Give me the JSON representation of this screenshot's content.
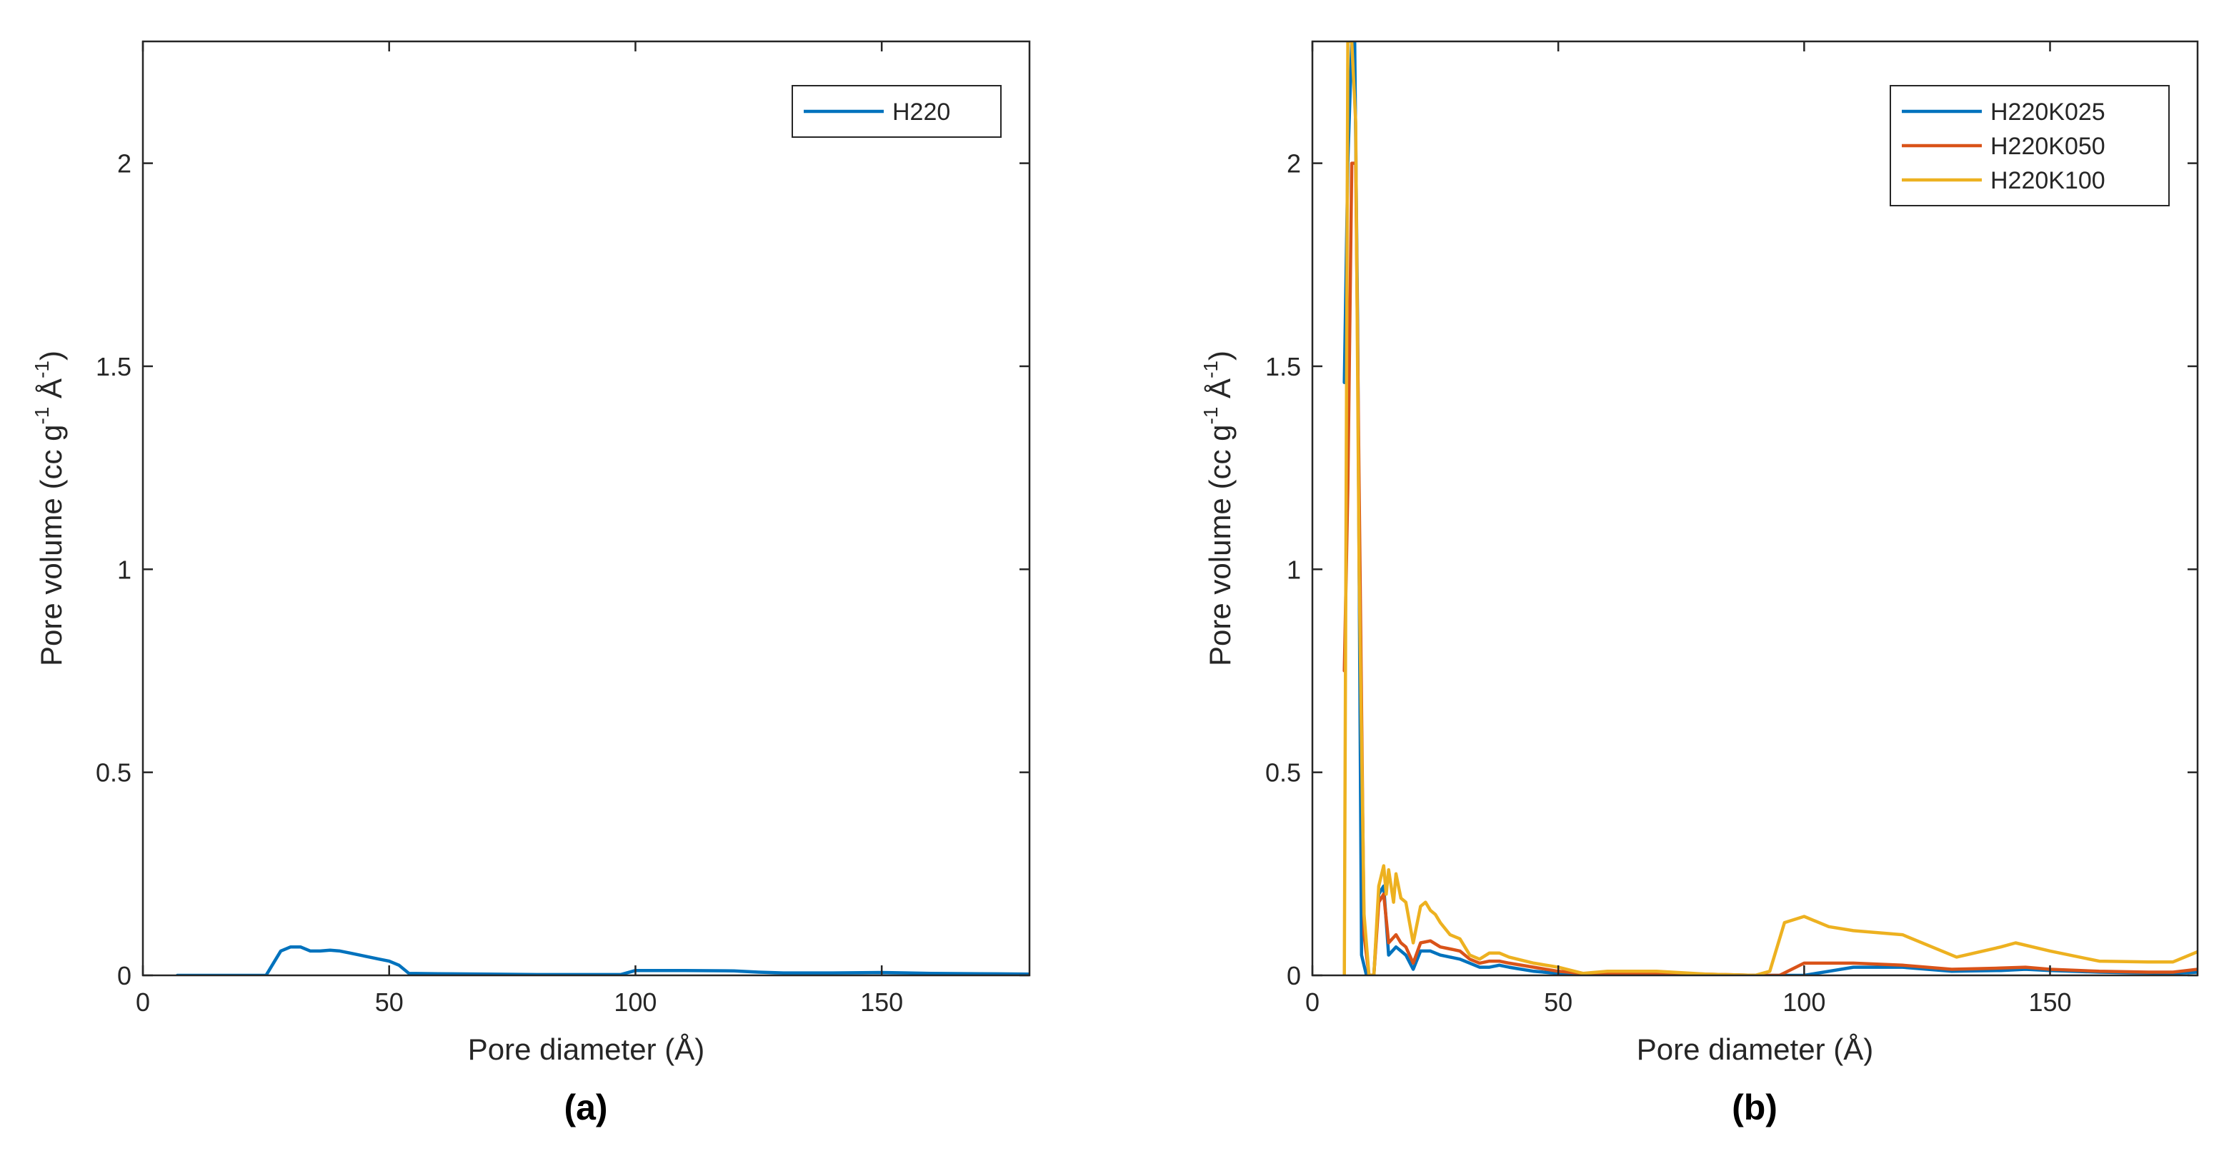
{
  "chart_data": [
    {
      "type": "line",
      "panel_label": "(a)",
      "xlabel": "Pore diameter (Å)",
      "ylabel": "Pore volume (cc g⁻¹ Å⁻¹)",
      "ylabel_parts": {
        "base": "Pore volume (cc g",
        "sup1": "-1",
        "mid": " Å",
        "sup2": "-1",
        "end": ")"
      },
      "xlim": [
        0,
        180
      ],
      "ylim": [
        0,
        2.3
      ],
      "xticks": [
        0,
        50,
        100,
        150
      ],
      "xtick_labels": [
        "0",
        "50",
        "100",
        "150"
      ],
      "yticks": [
        0,
        0.5,
        1,
        1.5,
        2
      ],
      "ytick_labels": [
        "0",
        "0.5",
        "1",
        "1.5",
        "2"
      ],
      "legend_position": "top-right",
      "series": [
        {
          "name": "H220",
          "color": "#0072BD",
          "x": [
            7,
            15,
            25,
            28,
            30,
            32,
            34,
            36,
            38,
            40,
            42,
            44,
            46,
            48,
            50,
            52,
            54,
            60,
            70,
            80,
            90,
            97,
            100,
            110,
            120,
            125,
            130,
            140,
            150,
            160,
            170,
            180
          ],
          "y": [
            0,
            0,
            0,
            0.06,
            0.07,
            0.07,
            0.06,
            0.06,
            0.062,
            0.06,
            0.055,
            0.05,
            0.045,
            0.04,
            0.035,
            0.025,
            0.005,
            0.004,
            0.003,
            0.002,
            0.002,
            0.002,
            0.012,
            0.012,
            0.011,
            0.008,
            0.006,
            0.006,
            0.007,
            0.005,
            0.004,
            0.003
          ]
        }
      ]
    },
    {
      "type": "line",
      "panel_label": "(b)",
      "xlabel": "Pore diameter (Å)",
      "ylabel": "Pore volume (cc g⁻¹ Å⁻¹)",
      "ylabel_parts": {
        "base": "Pore volume (cc g",
        "sup1": "-1",
        "mid": " Å",
        "sup2": "-1",
        "end": ")"
      },
      "xlim": [
        0,
        180
      ],
      "ylim": [
        0,
        2.3
      ],
      "xticks": [
        0,
        50,
        100,
        150
      ],
      "xtick_labels": [
        "0",
        "50",
        "100",
        "150"
      ],
      "yticks": [
        0,
        0.5,
        1,
        1.5,
        2
      ],
      "ytick_labels": [
        "0",
        "0.5",
        "1",
        "1.5",
        "2"
      ],
      "legend_position": "top-right",
      "series": [
        {
          "name": "H220K025",
          "color": "#0072BD",
          "x": [
            6.5,
            7.2,
            8,
            8.6,
            9.2,
            10,
            11,
            12.5,
            13.5,
            14.5,
            15.5,
            17,
            18,
            19,
            20.5,
            22,
            24,
            26,
            28,
            30,
            32,
            34,
            36,
            38,
            40,
            45,
            50,
            55,
            60,
            70,
            80,
            90,
            95,
            100,
            105,
            110,
            120,
            130,
            140,
            145,
            150,
            160,
            170,
            175,
            180
          ],
          "y": [
            1.46,
            2.0,
            2.3,
            2.3,
            1.6,
            0.05,
            0,
            0,
            0.2,
            0.22,
            0.05,
            0.07,
            0.06,
            0.05,
            0.015,
            0.06,
            0.06,
            0.05,
            0.045,
            0.04,
            0.03,
            0.02,
            0.02,
            0.025,
            0.02,
            0.01,
            0.005,
            0.003,
            0.003,
            0.003,
            0.002,
            0,
            0,
            0,
            0.01,
            0.02,
            0.02,
            0.01,
            0.012,
            0.015,
            0.012,
            0.008,
            0.006,
            0.005,
            0.008
          ]
        },
        {
          "name": "H220K050",
          "color": "#D95319",
          "x": [
            6.5,
            7.2,
            8,
            8.8,
            9.5,
            10.5,
            11.5,
            12.5,
            13.5,
            14.5,
            15.5,
            17,
            18,
            19,
            20.5,
            22,
            24,
            26,
            28,
            30,
            32,
            34,
            36,
            38,
            40,
            45,
            50,
            55,
            60,
            70,
            80,
            90,
            95,
            100,
            105,
            110,
            120,
            130,
            140,
            145,
            150,
            160,
            170,
            175,
            180
          ],
          "y": [
            0.75,
            1.2,
            2.0,
            2.0,
            1.2,
            0.1,
            0,
            0,
            0.18,
            0.2,
            0.08,
            0.1,
            0.08,
            0.07,
            0.03,
            0.08,
            0.085,
            0.07,
            0.065,
            0.06,
            0.04,
            0.03,
            0.035,
            0.035,
            0.03,
            0.02,
            0.01,
            0.005,
            0.005,
            0.005,
            0.003,
            0,
            0,
            0.03,
            0.03,
            0.03,
            0.025,
            0.015,
            0.018,
            0.02,
            0.015,
            0.01,
            0.008,
            0.008,
            0.015
          ]
        },
        {
          "name": "H220K100",
          "color": "#EDB120",
          "x": [
            6.5,
            7.2,
            8,
            8.8,
            9.5,
            10.5,
            11.5,
            12.5,
            13.5,
            14.5,
            15,
            15.5,
            16.5,
            17,
            18,
            19,
            20.5,
            22,
            23,
            24,
            25,
            26,
            28,
            30,
            32,
            34,
            36,
            38,
            40,
            45,
            50,
            55,
            60,
            70,
            80,
            90,
            93,
            96,
            100,
            105,
            110,
            120,
            131,
            140,
            143,
            150,
            160,
            170,
            175,
            180
          ],
          "y": [
            0,
            2.3,
            2.3,
            2.1,
            1.0,
            0.15,
            0,
            0,
            0.22,
            0.27,
            0.2,
            0.26,
            0.18,
            0.25,
            0.19,
            0.18,
            0.08,
            0.17,
            0.18,
            0.16,
            0.15,
            0.13,
            0.1,
            0.09,
            0.05,
            0.04,
            0.055,
            0.055,
            0.045,
            0.03,
            0.02,
            0.005,
            0.01,
            0.01,
            0.003,
            0,
            0.01,
            0.13,
            0.145,
            0.12,
            0.11,
            0.1,
            0.045,
            0.07,
            0.08,
            0.06,
            0.035,
            0.033,
            0.033,
            0.058
          ]
        }
      ]
    }
  ]
}
